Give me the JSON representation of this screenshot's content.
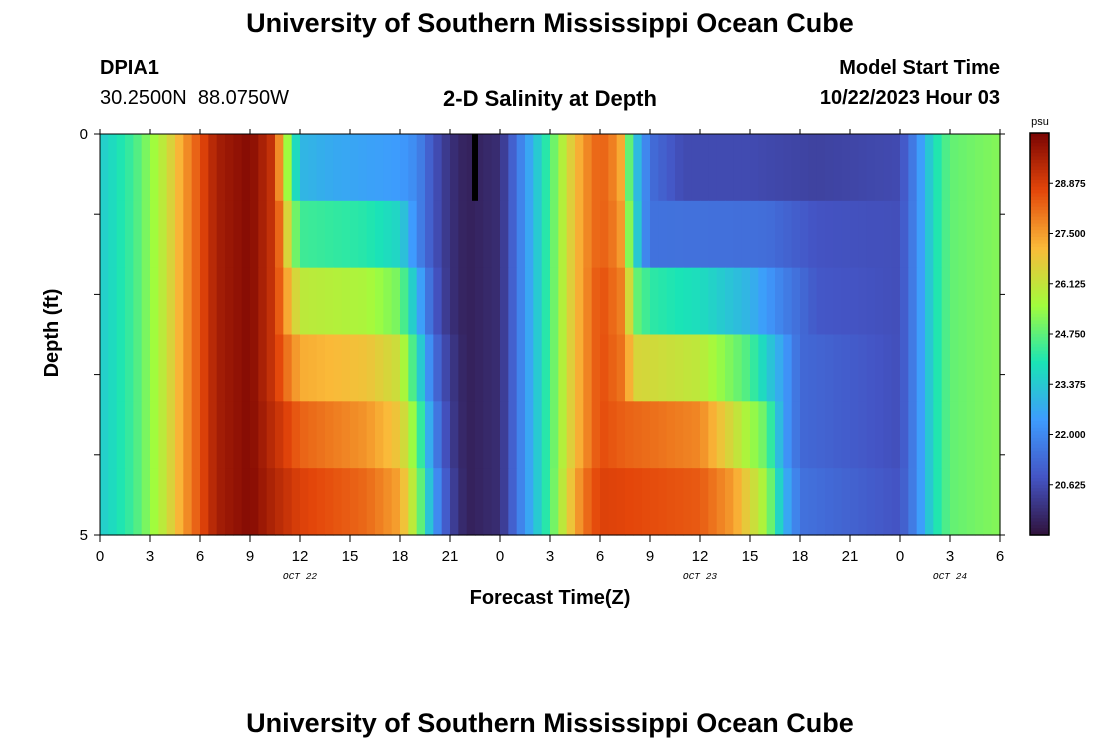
{
  "page": {
    "title": "University of Southern Mississippi Ocean Cube",
    "bottom_title": "University of Southern Mississippi Ocean Cube",
    "station": {
      "id": "DPIA1",
      "coords": "30.2500N  88.0750W"
    },
    "plot_title": "2-D Salinity at Depth",
    "model_start_label": "Model Start Time",
    "model_start_value": "10/22/2023 Hour 03"
  },
  "colors": {
    "colormap": [
      "#30123b",
      "#4454c4",
      "#3e9bfe",
      "#1ae4b6",
      "#a2fc3c",
      "#faba39",
      "#e4460a",
      "#7a0403"
    ]
  },
  "chart_data": {
    "type": "heatmap",
    "title": "2-D Salinity at Depth",
    "xlabel": "Forecast Time(Z)",
    "ylabel": "Depth (ft)",
    "x_unit": "hours from 10/22/2023 00Z",
    "x_ticks": [
      0,
      3,
      6,
      9,
      12,
      15,
      18,
      21,
      24,
      27,
      30,
      33,
      36,
      39,
      42,
      45,
      48,
      51,
      54
    ],
    "x_tick_labels": [
      "0",
      "3",
      "6",
      "9",
      "12",
      "15",
      "18",
      "21",
      "0",
      "3",
      "6",
      "9",
      "12",
      "15",
      "18",
      "21",
      "0",
      "3",
      "6"
    ],
    "xlim": [
      0,
      54
    ],
    "date_labels": [
      {
        "label": "OCT 22",
        "x": 12
      },
      {
        "label": "OCT 23",
        "x": 36
      },
      {
        "label": "OCT 24",
        "x": 51
      }
    ],
    "y_ticks": [
      0,
      5
    ],
    "y_tick_labels": [
      "0",
      "5"
    ],
    "ylim": [
      0,
      5
    ],
    "depth_levels": [
      0,
      1,
      2,
      3,
      4,
      5
    ],
    "colorbar": {
      "unit": "psu",
      "range": [
        19.25,
        30.25
      ],
      "ticks": [
        20.625,
        22.0,
        23.375,
        24.75,
        26.125,
        27.5,
        28.875
      ],
      "tick_labels": [
        "20.625",
        "22.000",
        "23.375",
        "24.750",
        "26.125",
        "27.500",
        "28.875"
      ]
    },
    "missing": [
      {
        "x": 22.5,
        "depth": 0
      }
    ],
    "profiles": [
      {
        "depth": 0,
        "points": [
          [
            0,
            23.4
          ],
          [
            2,
            24.4
          ],
          [
            4,
            26.2
          ],
          [
            5,
            27.5
          ],
          [
            7,
            29.6
          ],
          [
            9,
            30.1
          ],
          [
            10.5,
            29.0
          ],
          [
            11,
            26.5
          ],
          [
            11.5,
            24.5
          ],
          [
            12,
            23.0
          ],
          [
            14,
            22.7
          ],
          [
            18,
            22.4
          ],
          [
            19,
            22.0
          ],
          [
            20,
            20.8
          ],
          [
            21,
            20.0
          ],
          [
            22,
            19.6
          ],
          [
            24,
            19.9
          ],
          [
            25,
            21.5
          ],
          [
            26,
            23.0
          ],
          [
            27,
            24.5
          ],
          [
            28,
            26.3
          ],
          [
            29,
            27.6
          ],
          [
            30,
            28.4
          ],
          [
            31.2,
            27.6
          ],
          [
            31.6,
            25.5
          ],
          [
            32,
            23.6
          ],
          [
            33,
            21.4
          ],
          [
            35,
            20.6
          ],
          [
            39,
            20.6
          ],
          [
            43,
            20.4
          ],
          [
            48,
            20.6
          ],
          [
            49,
            22.0
          ],
          [
            50,
            23.8
          ],
          [
            51,
            24.8
          ],
          [
            54,
            25.2
          ]
        ]
      },
      {
        "depth": 1,
        "points": [
          [
            0,
            23.4
          ],
          [
            2,
            24.4
          ],
          [
            4,
            26.2
          ],
          [
            5,
            27.5
          ],
          [
            7,
            29.6
          ],
          [
            9,
            30.1
          ],
          [
            10.5,
            29.0
          ],
          [
            11,
            27.5
          ],
          [
            11.5,
            25.5
          ],
          [
            12,
            24.4
          ],
          [
            16,
            24.1
          ],
          [
            18,
            23.6
          ],
          [
            19,
            22.0
          ],
          [
            20,
            20.8
          ],
          [
            21,
            20.0
          ],
          [
            22,
            19.6
          ],
          [
            24,
            19.9
          ],
          [
            25,
            21.5
          ],
          [
            26,
            23.0
          ],
          [
            27,
            24.5
          ],
          [
            28,
            26.3
          ],
          [
            29,
            27.6
          ],
          [
            30,
            28.4
          ],
          [
            31.2,
            27.8
          ],
          [
            31.6,
            25.8
          ],
          [
            32,
            24.2
          ],
          [
            32.6,
            22.2
          ],
          [
            33,
            21.5
          ],
          [
            40,
            21.4
          ],
          [
            43,
            20.8
          ],
          [
            48,
            20.7
          ],
          [
            49,
            22.0
          ],
          [
            50,
            23.8
          ],
          [
            51,
            24.8
          ],
          [
            54,
            25.2
          ]
        ]
      },
      {
        "depth": 2,
        "points": [
          [
            0,
            23.4
          ],
          [
            2,
            24.4
          ],
          [
            4,
            26.2
          ],
          [
            5,
            27.5
          ],
          [
            7,
            29.6
          ],
          [
            9,
            30.1
          ],
          [
            10.5,
            29.0
          ],
          [
            11,
            27.8
          ],
          [
            12,
            26.0
          ],
          [
            16,
            25.7
          ],
          [
            18,
            25.0
          ],
          [
            19,
            23.0
          ],
          [
            20,
            21.0
          ],
          [
            21,
            20.0
          ],
          [
            22,
            19.6
          ],
          [
            24,
            19.9
          ],
          [
            25,
            21.5
          ],
          [
            26,
            23.0
          ],
          [
            27,
            24.5
          ],
          [
            28,
            26.3
          ],
          [
            29,
            27.6
          ],
          [
            30,
            28.6
          ],
          [
            31.5,
            27.8
          ],
          [
            32,
            25.0
          ],
          [
            33,
            24.2
          ],
          [
            36,
            23.8
          ],
          [
            39,
            22.9
          ],
          [
            41,
            21.8
          ],
          [
            43,
            20.9
          ],
          [
            48,
            20.7
          ],
          [
            49,
            22.0
          ],
          [
            50,
            23.8
          ],
          [
            51,
            24.8
          ],
          [
            54,
            25.2
          ]
        ]
      },
      {
        "depth": 3,
        "points": [
          [
            0,
            23.4
          ],
          [
            2,
            24.4
          ],
          [
            4,
            26.2
          ],
          [
            5,
            27.5
          ],
          [
            7,
            29.6
          ],
          [
            9,
            30.1
          ],
          [
            10.5,
            29.0
          ],
          [
            11,
            28.3
          ],
          [
            12,
            27.3
          ],
          [
            16,
            26.9
          ],
          [
            18,
            26.2
          ],
          [
            19,
            24.0
          ],
          [
            20,
            21.5
          ],
          [
            21,
            20.2
          ],
          [
            22,
            19.6
          ],
          [
            24,
            19.9
          ],
          [
            25,
            21.5
          ],
          [
            26,
            23.0
          ],
          [
            27,
            24.5
          ],
          [
            28,
            26.3
          ],
          [
            29,
            27.6
          ],
          [
            30,
            28.6
          ],
          [
            31.5,
            28.0
          ],
          [
            32,
            26.5
          ],
          [
            36,
            26.0
          ],
          [
            39,
            24.5
          ],
          [
            41,
            22.5
          ],
          [
            42,
            21.3
          ],
          [
            48,
            20.7
          ],
          [
            49,
            22.0
          ],
          [
            50,
            23.8
          ],
          [
            51,
            24.8
          ],
          [
            54,
            25.2
          ]
        ]
      },
      {
        "depth": 4,
        "points": [
          [
            0,
            23.4
          ],
          [
            2,
            24.4
          ],
          [
            4,
            26.2
          ],
          [
            5,
            27.5
          ],
          [
            7,
            29.6
          ],
          [
            9,
            30.1
          ],
          [
            10.5,
            29.2
          ],
          [
            12,
            28.3
          ],
          [
            16,
            27.6
          ],
          [
            18,
            26.8
          ],
          [
            19,
            25.0
          ],
          [
            20,
            22.0
          ],
          [
            21,
            20.3
          ],
          [
            22,
            19.6
          ],
          [
            24,
            19.9
          ],
          [
            25,
            21.5
          ],
          [
            26,
            23.0
          ],
          [
            27,
            24.5
          ],
          [
            28,
            26.3
          ],
          [
            29,
            27.6
          ],
          [
            30,
            28.6
          ],
          [
            31.5,
            28.3
          ],
          [
            36,
            27.8
          ],
          [
            38,
            26.3
          ],
          [
            40,
            24.8
          ],
          [
            41,
            22.5
          ],
          [
            42,
            21.3
          ],
          [
            48,
            20.7
          ],
          [
            49,
            22.0
          ],
          [
            50,
            23.8
          ],
          [
            51,
            24.8
          ],
          [
            54,
            25.2
          ]
        ]
      },
      {
        "depth": 5,
        "points": [
          [
            0,
            23.4
          ],
          [
            2,
            24.4
          ],
          [
            4,
            26.2
          ],
          [
            5,
            27.5
          ],
          [
            7,
            29.6
          ],
          [
            9,
            30.1
          ],
          [
            10.5,
            29.4
          ],
          [
            12,
            28.8
          ],
          [
            16,
            28.2
          ],
          [
            18,
            27.4
          ],
          [
            19,
            25.5
          ],
          [
            20,
            22.5
          ],
          [
            21,
            20.5
          ],
          [
            22,
            19.6
          ],
          [
            24,
            19.9
          ],
          [
            25,
            21.5
          ],
          [
            26,
            23.0
          ],
          [
            27,
            24.5
          ],
          [
            28,
            26.5
          ],
          [
            29,
            28.0
          ],
          [
            30,
            28.8
          ],
          [
            36,
            28.4
          ],
          [
            38,
            27.5
          ],
          [
            40,
            25.5
          ],
          [
            41,
            23.0
          ],
          [
            42,
            21.5
          ],
          [
            48,
            20.8
          ],
          [
            49,
            22.0
          ],
          [
            50,
            23.8
          ],
          [
            51,
            24.8
          ],
          [
            54,
            25.2
          ]
        ]
      }
    ]
  }
}
